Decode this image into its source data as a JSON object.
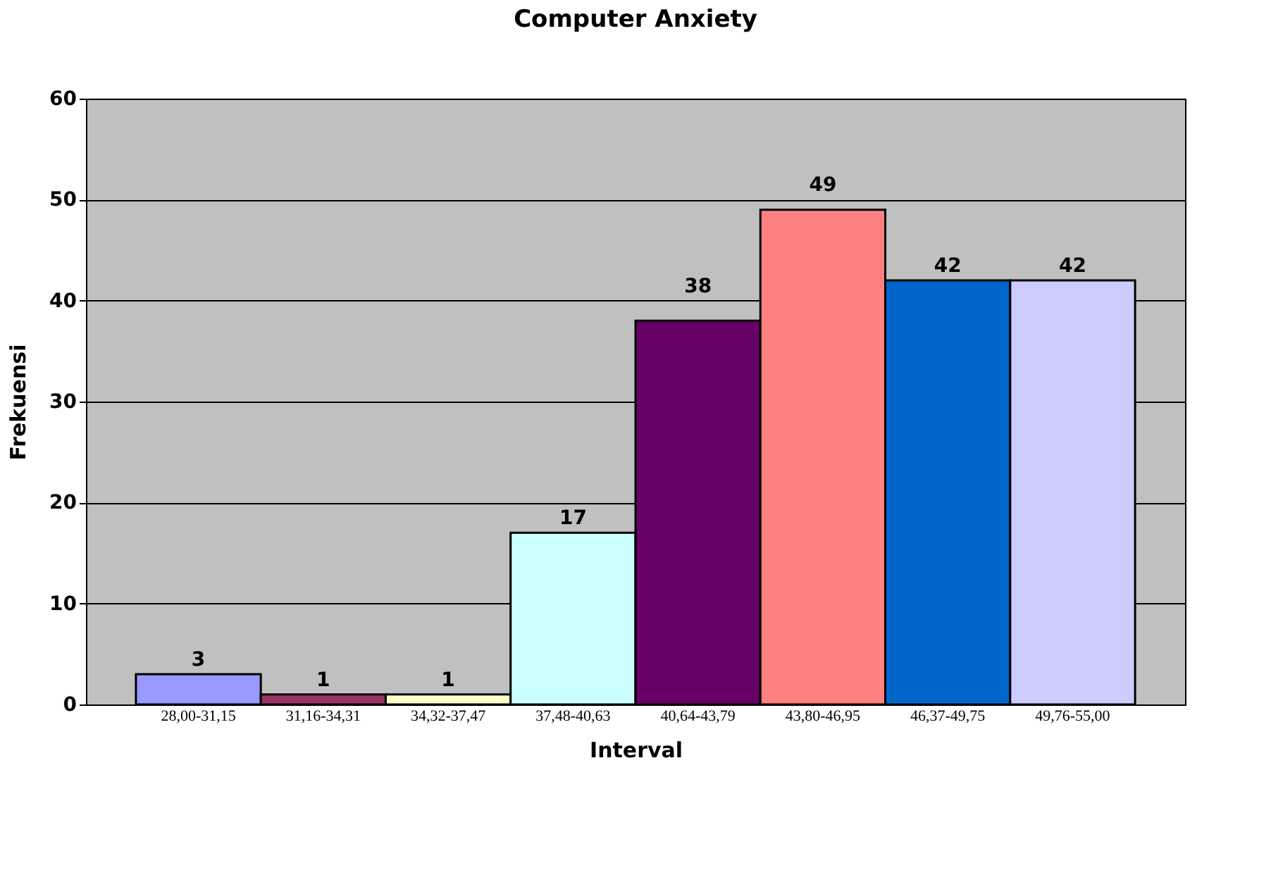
{
  "chart_data": {
    "type": "bar",
    "title": "Computer Anxiety",
    "xlabel": "Interval",
    "ylabel": "Frekuensi",
    "categories": [
      "28,00-31,15",
      "31,16-34,31",
      "34,32-37,47",
      "37,48-40,63",
      "40,64-43,79",
      "43,80-46,95",
      "46,37-49,75",
      "49,76-55,00"
    ],
    "values": [
      3,
      1,
      1,
      17,
      38,
      49,
      42,
      42
    ],
    "colors": [
      "#9999ff",
      "#993366",
      "#ffffcc",
      "#ccffff",
      "#660066",
      "#ff8080",
      "#0066cc",
      "#ccccff"
    ],
    "ylim": [
      0,
      60
    ],
    "yticks": [
      0,
      10,
      20,
      30,
      40,
      50,
      60
    ],
    "grid": "y",
    "data_labels": true
  }
}
